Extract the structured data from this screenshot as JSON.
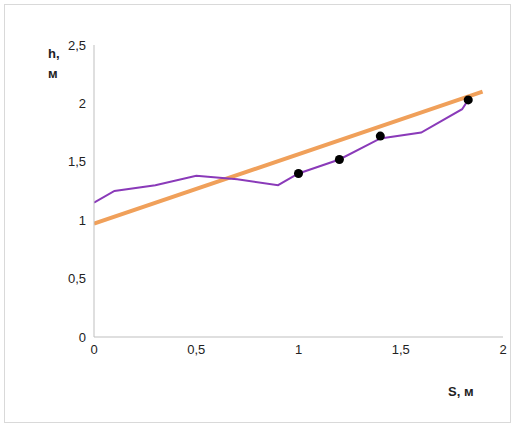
{
  "chart_data": {
    "type": "line",
    "x_label": "S, м",
    "y_label": "h, м",
    "xlim": [
      0,
      2
    ],
    "ylim": [
      0,
      2.5
    ],
    "xticks": [
      0,
      {
        "value": 0.5,
        "label": "0,5"
      },
      1,
      {
        "value": 1.5,
        "label": "1,5"
      },
      2
    ],
    "yticks": [
      0,
      {
        "value": 0.5,
        "label": "0,5"
      },
      1,
      {
        "value": 1.5,
        "label": "1,5"
      },
      2,
      {
        "value": 2.5,
        "label": "2,5"
      }
    ],
    "grid": false,
    "series": [
      {
        "type": "line",
        "color": "#f0a05a",
        "x": [
          0,
          1.9
        ],
        "values": [
          0.97,
          2.1
        ]
      },
      {
        "type": "line",
        "color": "#8a3ab9",
        "x": [
          0,
          0.1,
          0.3,
          0.5,
          0.7,
          0.9,
          1.0,
          1.2,
          1.4,
          1.6,
          1.8,
          1.83
        ],
        "values": [
          1.15,
          1.25,
          1.3,
          1.38,
          1.35,
          1.3,
          1.4,
          1.52,
          1.7,
          1.75,
          1.95,
          2.03
        ]
      },
      {
        "type": "scatter",
        "color": "#000000",
        "marker": "circle",
        "x": [
          1.0,
          1.2,
          1.4,
          1.83
        ],
        "values": [
          1.4,
          1.52,
          1.72,
          2.03
        ]
      }
    ]
  }
}
